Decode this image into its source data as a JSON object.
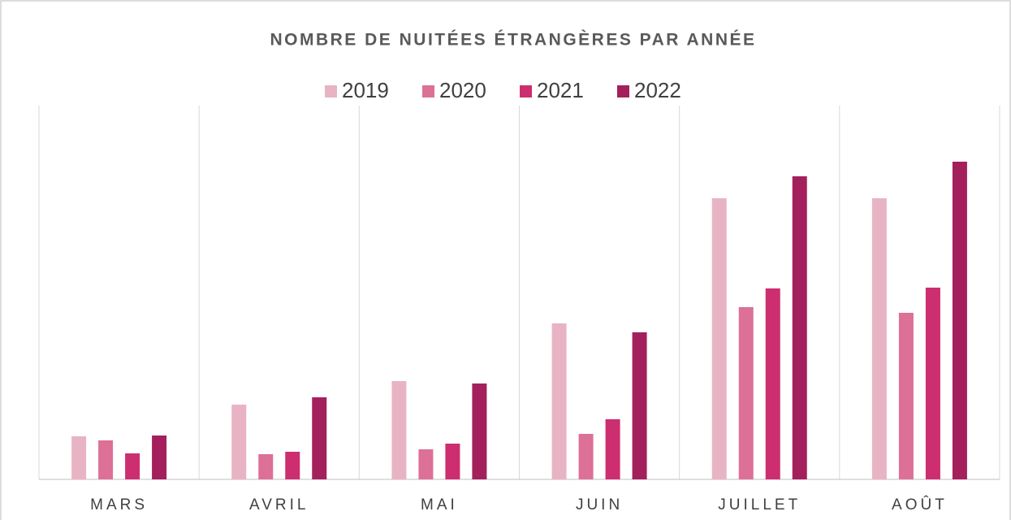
{
  "chart_data": {
    "type": "bar",
    "title": "NOMBRE DE NUITÉES ÉTRANGÈRES PAR ANNÉE",
    "categories": [
      "MARS",
      "AVRIL",
      "MAI",
      "JUIN",
      "JUILLET",
      "AOÛT"
    ],
    "series": [
      {
        "name": "2019",
        "color": "#e8b4c4",
        "values": [
          53,
          92,
          121,
          192,
          346,
          346
        ]
      },
      {
        "name": "2020",
        "color": "#dc7096",
        "values": [
          48,
          31,
          37,
          56,
          212,
          205
        ]
      },
      {
        "name": "2021",
        "color": "#cc2e70",
        "values": [
          32,
          34,
          44,
          74,
          235,
          236
        ]
      },
      {
        "name": "2022",
        "color": "#a3205c",
        "values": [
          54,
          101,
          118,
          181,
          373,
          391
        ]
      }
    ],
    "ylim": [
      0,
      460
    ],
    "legend": "top"
  }
}
